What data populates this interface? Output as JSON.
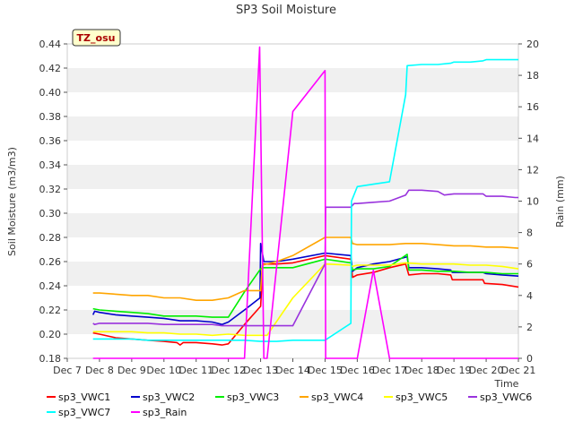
{
  "chart_data": {
    "type": "line",
    "title": "SP3 Soil Moisture",
    "ylabel": "Soil Moisture (m3/m3)",
    "y2label": "Rain (mm)",
    "xlabel": "Time",
    "badge": "TZ_osu",
    "xlim": [
      7,
      21
    ],
    "ylim": [
      0.18,
      0.44
    ],
    "y2lim": [
      0,
      20
    ],
    "x_ticks": [
      {
        "v": 7,
        "label": "Dec 7"
      },
      {
        "v": 8,
        "label": "Dec 8"
      },
      {
        "v": 9,
        "label": "Dec 9"
      },
      {
        "v": 10,
        "label": "Dec 10"
      },
      {
        "v": 11,
        "label": "Dec 11"
      },
      {
        "v": 12,
        "label": "Dec 12"
      },
      {
        "v": 13,
        "label": "Dec 13"
      },
      {
        "v": 14,
        "label": "Dec 14"
      },
      {
        "v": 15,
        "label": "Dec 15"
      },
      {
        "v": 16,
        "label": "Dec 16"
      },
      {
        "v": 17,
        "label": "Dec 17"
      },
      {
        "v": 18,
        "label": "Dec 18"
      },
      {
        "v": 19,
        "label": "Dec 19"
      },
      {
        "v": 20,
        "label": "Dec 20"
      },
      {
        "v": 21,
        "label": "Dec 21"
      }
    ],
    "y_ticks": [
      {
        "v": 0.18,
        "label": "0.18"
      },
      {
        "v": 0.2,
        "label": "0.20"
      },
      {
        "v": 0.22,
        "label": "0.22"
      },
      {
        "v": 0.24,
        "label": "0.24"
      },
      {
        "v": 0.26,
        "label": "0.26"
      },
      {
        "v": 0.28,
        "label": "0.28"
      },
      {
        "v": 0.3,
        "label": "0.30"
      },
      {
        "v": 0.32,
        "label": "0.32"
      },
      {
        "v": 0.34,
        "label": "0.34"
      },
      {
        "v": 0.36,
        "label": "0.36"
      },
      {
        "v": 0.38,
        "label": "0.38"
      },
      {
        "v": 0.4,
        "label": "0.40"
      },
      {
        "v": 0.42,
        "label": "0.42"
      },
      {
        "v": 0.44,
        "label": "0.44"
      }
    ],
    "y2_ticks": [
      {
        "v": 0,
        "label": "0"
      },
      {
        "v": 2,
        "label": "2"
      },
      {
        "v": 4,
        "label": "4"
      },
      {
        "v": 6,
        "label": "6"
      },
      {
        "v": 8,
        "label": "8"
      },
      {
        "v": 10,
        "label": "10"
      },
      {
        "v": 12,
        "label": "12"
      },
      {
        "v": 14,
        "label": "14"
      },
      {
        "v": 16,
        "label": "16"
      },
      {
        "v": 18,
        "label": "18"
      },
      {
        "v": 20,
        "label": "20"
      }
    ],
    "grid": "horizontal bands",
    "legend_position": "bottom",
    "series": [
      {
        "name": "sp3_VWC1",
        "color": "#ff0000",
        "axis": "left",
        "points": [
          [
            7.8,
            0.201
          ],
          [
            8,
            0.2
          ],
          [
            8.5,
            0.197
          ],
          [
            9,
            0.196
          ],
          [
            9.5,
            0.195
          ],
          [
            10,
            0.194
          ],
          [
            10.4,
            0.193
          ],
          [
            10.5,
            0.191
          ],
          [
            10.6,
            0.193
          ],
          [
            11,
            0.193
          ],
          [
            11.5,
            0.192
          ],
          [
            11.8,
            0.191
          ],
          [
            12,
            0.192
          ],
          [
            12.5,
            0.208
          ],
          [
            13,
            0.223
          ],
          [
            13.07,
            0.258
          ],
          [
            13.5,
            0.258
          ],
          [
            14,
            0.259
          ],
          [
            15,
            0.265
          ],
          [
            15.8,
            0.262
          ],
          [
            15.85,
            0.247
          ],
          [
            16,
            0.249
          ],
          [
            16.5,
            0.251
          ],
          [
            17,
            0.255
          ],
          [
            17.5,
            0.258
          ],
          [
            17.6,
            0.249
          ],
          [
            18,
            0.25
          ],
          [
            18.5,
            0.25
          ],
          [
            18.9,
            0.249
          ],
          [
            18.95,
            0.245
          ],
          [
            19.5,
            0.245
          ],
          [
            19.9,
            0.245
          ],
          [
            19.95,
            0.242
          ],
          [
            20.5,
            0.241
          ],
          [
            21,
            0.239
          ]
        ]
      },
      {
        "name": "sp3_VWC2",
        "color": "#0000cc",
        "axis": "left",
        "points": [
          [
            7.8,
            0.216
          ],
          [
            7.85,
            0.219
          ],
          [
            8,
            0.218
          ],
          [
            8.5,
            0.216
          ],
          [
            9,
            0.215
          ],
          [
            9.5,
            0.214
          ],
          [
            10,
            0.213
          ],
          [
            10.5,
            0.211
          ],
          [
            11,
            0.211
          ],
          [
            11.5,
            0.21
          ],
          [
            11.8,
            0.208
          ],
          [
            12,
            0.21
          ],
          [
            12.5,
            0.22
          ],
          [
            12.98,
            0.23
          ],
          [
            13,
            0.275
          ],
          [
            13.1,
            0.26
          ],
          [
            13.5,
            0.26
          ],
          [
            14,
            0.262
          ],
          [
            15,
            0.267
          ],
          [
            15.8,
            0.265
          ],
          [
            15.85,
            0.252
          ],
          [
            16,
            0.255
          ],
          [
            16.5,
            0.258
          ],
          [
            17,
            0.26
          ],
          [
            17.55,
            0.264
          ],
          [
            17.6,
            0.255
          ],
          [
            18,
            0.255
          ],
          [
            18.5,
            0.254
          ],
          [
            18.9,
            0.253
          ],
          [
            18.95,
            0.251
          ],
          [
            19.5,
            0.251
          ],
          [
            19.9,
            0.251
          ],
          [
            20,
            0.25
          ],
          [
            20.5,
            0.249
          ],
          [
            21,
            0.248
          ]
        ]
      },
      {
        "name": "sp3_VWC3",
        "color": "#00ee00",
        "axis": "left",
        "points": [
          [
            7.8,
            0.221
          ],
          [
            8,
            0.22
          ],
          [
            8.5,
            0.219
          ],
          [
            9,
            0.218
          ],
          [
            9.5,
            0.217
          ],
          [
            10,
            0.215
          ],
          [
            10.5,
            0.215
          ],
          [
            11,
            0.215
          ],
          [
            11.5,
            0.214
          ],
          [
            12,
            0.214
          ],
          [
            12.5,
            0.235
          ],
          [
            13,
            0.254
          ],
          [
            13.07,
            0.255
          ],
          [
            13.5,
            0.255
          ],
          [
            14,
            0.255
          ],
          [
            15,
            0.262
          ],
          [
            15.8,
            0.259
          ],
          [
            15.85,
            0.253
          ],
          [
            16,
            0.254
          ],
          [
            16.5,
            0.254
          ],
          [
            17,
            0.256
          ],
          [
            17.55,
            0.266
          ],
          [
            17.6,
            0.253
          ],
          [
            18,
            0.253
          ],
          [
            18.5,
            0.252
          ],
          [
            19,
            0.252
          ],
          [
            19.5,
            0.251
          ],
          [
            20,
            0.251
          ],
          [
            20.5,
            0.25
          ],
          [
            21,
            0.25
          ]
        ]
      },
      {
        "name": "sp3_VWC4",
        "color": "#ffa500",
        "axis": "left",
        "points": [
          [
            7.8,
            0.234
          ],
          [
            8,
            0.234
          ],
          [
            8.5,
            0.233
          ],
          [
            9,
            0.232
          ],
          [
            9.5,
            0.232
          ],
          [
            10,
            0.23
          ],
          [
            10.5,
            0.23
          ],
          [
            11,
            0.228
          ],
          [
            11.5,
            0.228
          ],
          [
            12,
            0.23
          ],
          [
            12.5,
            0.236
          ],
          [
            13,
            0.236
          ],
          [
            13.05,
            0.257
          ],
          [
            13.5,
            0.26
          ],
          [
            14,
            0.265
          ],
          [
            15,
            0.28
          ],
          [
            15.8,
            0.28
          ],
          [
            15.85,
            0.275
          ],
          [
            16,
            0.274
          ],
          [
            16.5,
            0.274
          ],
          [
            17,
            0.274
          ],
          [
            17.5,
            0.275
          ],
          [
            18,
            0.275
          ],
          [
            18.5,
            0.274
          ],
          [
            19,
            0.273
          ],
          [
            19.5,
            0.273
          ],
          [
            20,
            0.272
          ],
          [
            20.5,
            0.272
          ],
          [
            21,
            0.271
          ]
        ]
      },
      {
        "name": "sp3_VWC5",
        "color": "#ffff00",
        "axis": "left",
        "points": [
          [
            7.8,
            0.202
          ],
          [
            8,
            0.202
          ],
          [
            8.5,
            0.202
          ],
          [
            9,
            0.202
          ],
          [
            9.5,
            0.201
          ],
          [
            10,
            0.201
          ],
          [
            10.5,
            0.2
          ],
          [
            11,
            0.2
          ],
          [
            11.5,
            0.199
          ],
          [
            12,
            0.2
          ],
          [
            12.5,
            0.199
          ],
          [
            13,
            0.199
          ],
          [
            13.2,
            0.199
          ],
          [
            14,
            0.23
          ],
          [
            15,
            0.258
          ],
          [
            15.8,
            0.257
          ],
          [
            15.85,
            0.256
          ],
          [
            16,
            0.257
          ],
          [
            16.5,
            0.257
          ],
          [
            17,
            0.257
          ],
          [
            17.5,
            0.259
          ],
          [
            18,
            0.258
          ],
          [
            18.5,
            0.258
          ],
          [
            19,
            0.258
          ],
          [
            19.5,
            0.257
          ],
          [
            20,
            0.257
          ],
          [
            20.5,
            0.256
          ],
          [
            21,
            0.254
          ]
        ]
      },
      {
        "name": "sp3_VWC6",
        "color": "#9933dd",
        "axis": "left",
        "points": [
          [
            7.8,
            0.209
          ],
          [
            7.85,
            0.208
          ],
          [
            8,
            0.209
          ],
          [
            8.5,
            0.209
          ],
          [
            9,
            0.209
          ],
          [
            9.5,
            0.209
          ],
          [
            10,
            0.208
          ],
          [
            10.5,
            0.208
          ],
          [
            11,
            0.208
          ],
          [
            11.5,
            0.208
          ],
          [
            11.8,
            0.207
          ],
          [
            12,
            0.207
          ],
          [
            13,
            0.207
          ],
          [
            13.5,
            0.207
          ],
          [
            14,
            0.207
          ],
          [
            15,
            0.258
          ],
          [
            15.02,
            0.305
          ],
          [
            15.5,
            0.305
          ],
          [
            15.8,
            0.305
          ],
          [
            15.9,
            0.308
          ],
          [
            16,
            0.308
          ],
          [
            16.5,
            0.309
          ],
          [
            17,
            0.31
          ],
          [
            17.5,
            0.315
          ],
          [
            17.6,
            0.319
          ],
          [
            18,
            0.319
          ],
          [
            18.5,
            0.318
          ],
          [
            18.7,
            0.315
          ],
          [
            19,
            0.316
          ],
          [
            19.5,
            0.316
          ],
          [
            19.9,
            0.316
          ],
          [
            20,
            0.314
          ],
          [
            20.5,
            0.314
          ],
          [
            20.9,
            0.313
          ],
          [
            21,
            0.313
          ]
        ]
      },
      {
        "name": "sp3_VWC7",
        "color": "#00ffff",
        "axis": "left",
        "points": [
          [
            7.8,
            0.196
          ],
          [
            8,
            0.196
          ],
          [
            8.5,
            0.196
          ],
          [
            9,
            0.196
          ],
          [
            9.5,
            0.195
          ],
          [
            10,
            0.195
          ],
          [
            10.5,
            0.195
          ],
          [
            11,
            0.195
          ],
          [
            11.5,
            0.195
          ],
          [
            12,
            0.195
          ],
          [
            12.5,
            0.195
          ],
          [
            13,
            0.194
          ],
          [
            13.5,
            0.194
          ],
          [
            14,
            0.195
          ],
          [
            15,
            0.195
          ],
          [
            15.8,
            0.209
          ],
          [
            15.82,
            0.31
          ],
          [
            16,
            0.322
          ],
          [
            16.5,
            0.324
          ],
          [
            17,
            0.326
          ],
          [
            17.5,
            0.398
          ],
          [
            17.55,
            0.422
          ],
          [
            18,
            0.423
          ],
          [
            18.5,
            0.423
          ],
          [
            18.9,
            0.424
          ],
          [
            19,
            0.425
          ],
          [
            19.5,
            0.425
          ],
          [
            19.9,
            0.426
          ],
          [
            20,
            0.427
          ],
          [
            20.5,
            0.427
          ],
          [
            21,
            0.427
          ]
        ]
      },
      {
        "name": "sp3_Rain",
        "color": "#ff00ff",
        "axis": "right",
        "points": [
          [
            7.8,
            0
          ],
          [
            12.5,
            0
          ],
          [
            12.97,
            19.8
          ],
          [
            13.1,
            0
          ],
          [
            13.2,
            0
          ],
          [
            14,
            15.7
          ],
          [
            15,
            18.3
          ],
          [
            15.02,
            0
          ],
          [
            16,
            0
          ],
          [
            16.5,
            5.6
          ],
          [
            17,
            0
          ],
          [
            21,
            0
          ]
        ]
      }
    ]
  }
}
